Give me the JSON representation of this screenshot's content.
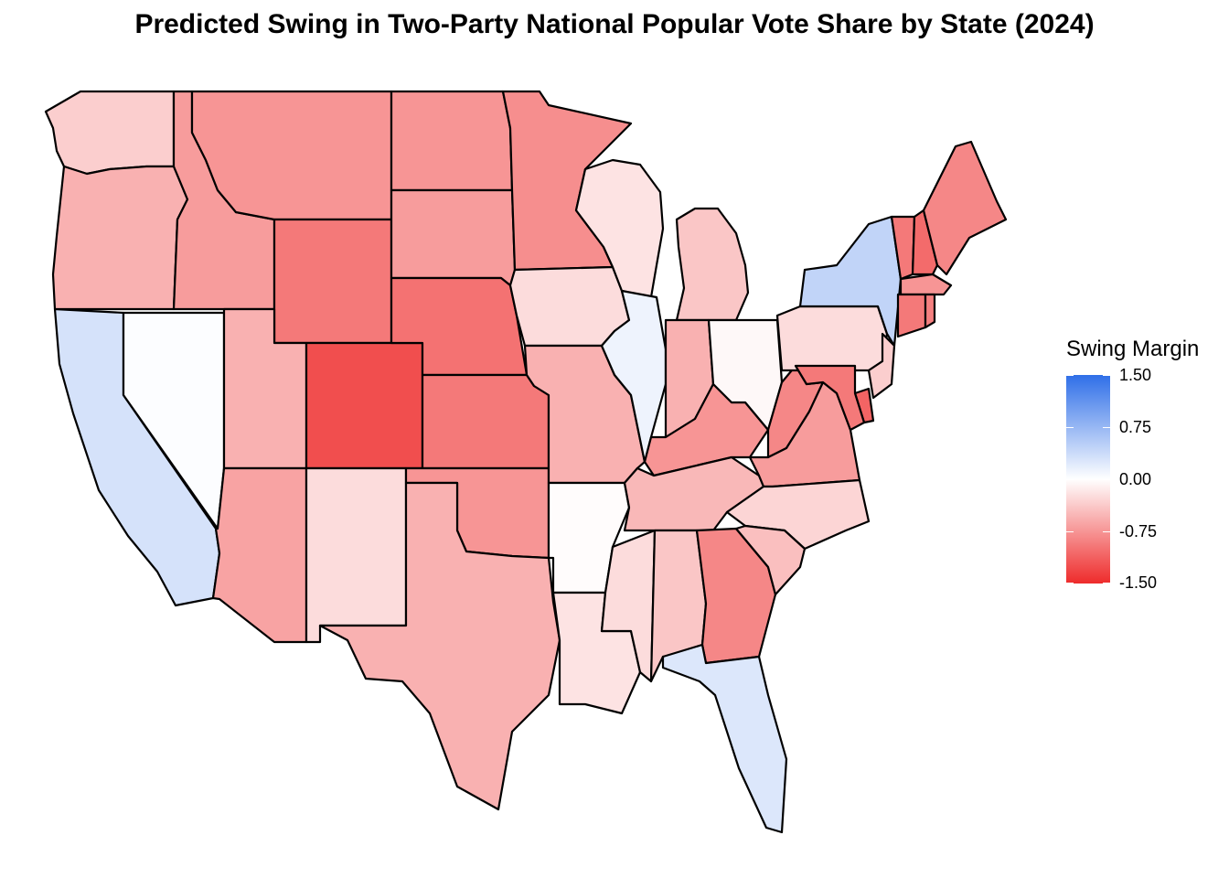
{
  "title": "Predicted Swing in Two-Party National Popular Vote Share by State (2024)",
  "legend": {
    "title": "Swing Margin",
    "ticks": [
      "1.50",
      "0.75",
      "0.00",
      "-0.75",
      "-1.50"
    ],
    "scale_min": -1.5,
    "scale_max": 1.5,
    "colors": {
      "high": "#2f6fe8",
      "mid": "#ffffff",
      "low": "#ee2b2b"
    }
  },
  "states": [
    {
      "id": "WA",
      "swing": -0.35
    },
    {
      "id": "OR",
      "swing": -0.55
    },
    {
      "id": "CA",
      "swing": 0.3
    },
    {
      "id": "ID",
      "swing": -0.7
    },
    {
      "id": "NV",
      "swing": 0.02
    },
    {
      "id": "MT",
      "swing": -0.75
    },
    {
      "id": "WY",
      "swing": -0.95
    },
    {
      "id": "UT",
      "swing": -0.55
    },
    {
      "id": "AZ",
      "swing": -0.65
    },
    {
      "id": "CO",
      "swing": -1.25
    },
    {
      "id": "NM",
      "swing": -0.25
    },
    {
      "id": "ND",
      "swing": -0.75
    },
    {
      "id": "SD",
      "swing": -0.7
    },
    {
      "id": "NE",
      "swing": -1.0
    },
    {
      "id": "KS",
      "swing": -0.95
    },
    {
      "id": "OK",
      "swing": -0.75
    },
    {
      "id": "TX",
      "swing": -0.55
    },
    {
      "id": "MN",
      "swing": -0.8
    },
    {
      "id": "IA",
      "swing": -0.25
    },
    {
      "id": "MO",
      "swing": -0.55
    },
    {
      "id": "AR",
      "swing": -0.02
    },
    {
      "id": "LA",
      "swing": -0.2
    },
    {
      "id": "WI",
      "swing": -0.2
    },
    {
      "id": "IL",
      "swing": 0.12
    },
    {
      "id": "MS",
      "swing": -0.25
    },
    {
      "id": "MI",
      "swing": -0.4
    },
    {
      "id": "IN",
      "swing": -0.55
    },
    {
      "id": "KY",
      "swing": -0.75
    },
    {
      "id": "TN",
      "swing": -0.5
    },
    {
      "id": "AL",
      "swing": -0.4
    },
    {
      "id": "GA",
      "swing": -0.85
    },
    {
      "id": "FL",
      "swing": 0.25
    },
    {
      "id": "OH",
      "swing": -0.05
    },
    {
      "id": "WV",
      "swing": -0.85
    },
    {
      "id": "VA",
      "swing": -0.7
    },
    {
      "id": "NC",
      "swing": -0.3
    },
    {
      "id": "SC",
      "swing": -0.45
    },
    {
      "id": "PA",
      "swing": -0.25
    },
    {
      "id": "NY",
      "swing": 0.45
    },
    {
      "id": "VT",
      "swing": -0.95
    },
    {
      "id": "NH",
      "swing": -1.05
    },
    {
      "id": "ME",
      "swing": -0.85
    },
    {
      "id": "MA",
      "swing": -0.75
    },
    {
      "id": "RI",
      "swing": -0.9
    },
    {
      "id": "CT",
      "swing": -0.95
    },
    {
      "id": "NJ",
      "swing": -0.35
    },
    {
      "id": "DE",
      "swing": -1.1
    },
    {
      "id": "MD",
      "swing": -0.95
    }
  ]
}
